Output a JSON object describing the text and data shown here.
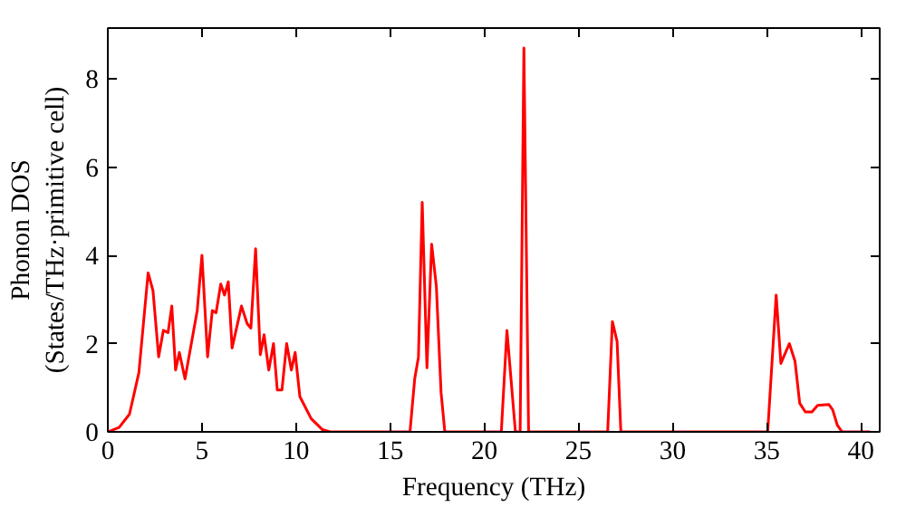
{
  "chart_data": {
    "type": "line",
    "xlabel": "Frequency (THz)",
    "ylabel": "Phonon DOS\n(States/THz·primitive cell)",
    "xlim": [
      0,
      41
    ],
    "ylim": [
      0,
      9.15
    ],
    "xticks": [
      0,
      5,
      10,
      15,
      20,
      25,
      30,
      35,
      40
    ],
    "yticks": [
      0,
      2,
      4,
      6,
      8
    ],
    "grid": false,
    "marker": "none",
    "line_style": "solid",
    "series": [
      {
        "color": "#ff0000",
        "x": [
          0,
          0.6,
          1.15,
          1.65,
          2.14,
          2.4,
          2.7,
          2.95,
          3.2,
          3.4,
          3.6,
          3.8,
          4.1,
          4.75,
          5.0,
          5.3,
          5.55,
          5.75,
          6.0,
          6.2,
          6.4,
          6.6,
          7.1,
          7.4,
          7.6,
          7.85,
          8.1,
          8.3,
          8.55,
          8.8,
          9.0,
          9.25,
          9.5,
          9.75,
          9.95,
          10.2,
          10.8,
          11.4,
          11.8,
          16.05,
          16.3,
          16.5,
          16.7,
          16.95,
          17.2,
          17.45,
          17.7,
          17.9,
          20.9,
          21.2,
          21.65,
          21.9,
          22.1,
          22.35,
          26.55,
          26.8,
          27.05,
          27.25,
          35.05,
          35.5,
          35.75,
          36.2,
          36.5,
          36.75,
          37.05,
          37.4,
          37.7,
          38.3,
          38.5,
          38.75,
          39.0,
          40.5
        ],
        "values": [
          0,
          0.1,
          0.4,
          1.34,
          3.6,
          3.2,
          1.7,
          2.3,
          2.25,
          2.85,
          1.4,
          1.8,
          1.2,
          2.75,
          4.0,
          1.7,
          2.75,
          2.7,
          3.35,
          3.1,
          3.4,
          1.9,
          2.85,
          2.45,
          2.35,
          4.15,
          1.75,
          2.2,
          1.4,
          2.0,
          0.95,
          0.95,
          2.0,
          1.4,
          1.8,
          0.8,
          0.3,
          0.05,
          0,
          0,
          1.2,
          1.7,
          5.2,
          1.45,
          4.25,
          3.3,
          0.9,
          0,
          0,
          2.3,
          0,
          0,
          8.7,
          0,
          0,
          2.5,
          2.05,
          0,
          0,
          3.1,
          1.55,
          2.0,
          1.6,
          0.65,
          0.45,
          0.45,
          0.6,
          0.62,
          0.5,
          0.15,
          0,
          0
        ]
      }
    ]
  }
}
